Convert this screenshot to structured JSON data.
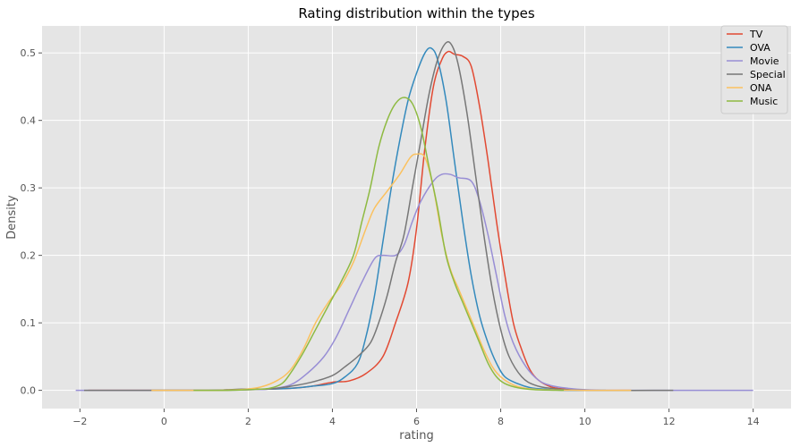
{
  "chart_data": {
    "type": "line",
    "title": "Rating distribution within the types",
    "xlabel": "rating",
    "ylabel": "Density",
    "xlim": [
      -2.9,
      14.9
    ],
    "ylim": [
      -0.027,
      0.54
    ],
    "xticks": [
      -2,
      0,
      2,
      4,
      6,
      8,
      10,
      12,
      14
    ],
    "yticks": [
      0.0,
      0.1,
      0.2,
      0.3,
      0.4,
      0.5
    ],
    "xtick_labels": [
      "−2",
      "0",
      "2",
      "4",
      "6",
      "8",
      "10",
      "12",
      "14"
    ],
    "ytick_labels": [
      "0.0",
      "0.1",
      "0.2",
      "0.3",
      "0.4",
      "0.5"
    ],
    "grid": true,
    "legend_position": "top-right",
    "series": [
      {
        "name": "TV",
        "color": "#E24A33",
        "points": [
          [
            -1.8,
            0
          ],
          [
            1.0,
            0
          ],
          [
            2.0,
            0.001
          ],
          [
            3.0,
            0.003
          ],
          [
            3.5,
            0.006
          ],
          [
            4.0,
            0.012
          ],
          [
            4.4,
            0.014
          ],
          [
            4.8,
            0.025
          ],
          [
            5.2,
            0.05
          ],
          [
            5.5,
            0.1
          ],
          [
            5.8,
            0.16
          ],
          [
            6.0,
            0.24
          ],
          [
            6.2,
            0.36
          ],
          [
            6.4,
            0.45
          ],
          [
            6.6,
            0.49
          ],
          [
            6.75,
            0.502
          ],
          [
            6.9,
            0.498
          ],
          [
            7.1,
            0.495
          ],
          [
            7.3,
            0.48
          ],
          [
            7.5,
            0.42
          ],
          [
            7.7,
            0.34
          ],
          [
            7.9,
            0.25
          ],
          [
            8.1,
            0.17
          ],
          [
            8.3,
            0.1
          ],
          [
            8.5,
            0.06
          ],
          [
            8.7,
            0.03
          ],
          [
            8.9,
            0.015
          ],
          [
            9.2,
            0.005
          ],
          [
            9.5,
            0.002
          ],
          [
            10,
            0
          ],
          [
            11.1,
            0
          ]
        ]
      },
      {
        "name": "OVA",
        "color": "#348ABD",
        "points": [
          [
            -0.3,
            0
          ],
          [
            1.0,
            0
          ],
          [
            2.0,
            0.001
          ],
          [
            3.0,
            0.003
          ],
          [
            3.5,
            0.006
          ],
          [
            4.0,
            0.01
          ],
          [
            4.3,
            0.02
          ],
          [
            4.6,
            0.04
          ],
          [
            4.8,
            0.08
          ],
          [
            5.0,
            0.14
          ],
          [
            5.2,
            0.22
          ],
          [
            5.4,
            0.3
          ],
          [
            5.6,
            0.37
          ],
          [
            5.8,
            0.43
          ],
          [
            6.0,
            0.47
          ],
          [
            6.2,
            0.5
          ],
          [
            6.35,
            0.507
          ],
          [
            6.5,
            0.49
          ],
          [
            6.7,
            0.43
          ],
          [
            6.9,
            0.34
          ],
          [
            7.1,
            0.25
          ],
          [
            7.3,
            0.17
          ],
          [
            7.5,
            0.11
          ],
          [
            7.7,
            0.07
          ],
          [
            7.9,
            0.04
          ],
          [
            8.1,
            0.02
          ],
          [
            8.4,
            0.01
          ],
          [
            8.7,
            0.004
          ],
          [
            9.0,
            0.002
          ],
          [
            9.5,
            0
          ],
          [
            10.5,
            0
          ]
        ]
      },
      {
        "name": "Movie",
        "color": "#988ED5",
        "points": [
          [
            -2.1,
            0
          ],
          [
            1.0,
            0
          ],
          [
            2.0,
            0.001
          ],
          [
            2.5,
            0.002
          ],
          [
            3.0,
            0.008
          ],
          [
            3.4,
            0.025
          ],
          [
            3.8,
            0.05
          ],
          [
            4.1,
            0.08
          ],
          [
            4.4,
            0.12
          ],
          [
            4.7,
            0.16
          ],
          [
            5.0,
            0.195
          ],
          [
            5.2,
            0.2
          ],
          [
            5.5,
            0.2
          ],
          [
            5.7,
            0.215
          ],
          [
            5.9,
            0.25
          ],
          [
            6.1,
            0.28
          ],
          [
            6.4,
            0.31
          ],
          [
            6.6,
            0.32
          ],
          [
            6.8,
            0.32
          ],
          [
            7.0,
            0.315
          ],
          [
            7.3,
            0.31
          ],
          [
            7.5,
            0.28
          ],
          [
            7.7,
            0.23
          ],
          [
            7.9,
            0.17
          ],
          [
            8.1,
            0.11
          ],
          [
            8.3,
            0.07
          ],
          [
            8.6,
            0.035
          ],
          [
            8.9,
            0.015
          ],
          [
            9.2,
            0.007
          ],
          [
            9.6,
            0.003
          ],
          [
            10,
            0.001
          ],
          [
            11,
            0
          ],
          [
            14.0,
            0
          ]
        ]
      },
      {
        "name": "Special",
        "color": "#777777",
        "points": [
          [
            -1.9,
            0
          ],
          [
            1.0,
            0
          ],
          [
            1.5,
            0.001
          ],
          [
            2.0,
            0.002
          ],
          [
            2.5,
            0.002
          ],
          [
            3.0,
            0.006
          ],
          [
            3.5,
            0.012
          ],
          [
            4.0,
            0.022
          ],
          [
            4.3,
            0.035
          ],
          [
            4.6,
            0.05
          ],
          [
            4.9,
            0.07
          ],
          [
            5.1,
            0.1
          ],
          [
            5.3,
            0.14
          ],
          [
            5.5,
            0.19
          ],
          [
            5.7,
            0.23
          ],
          [
            5.9,
            0.3
          ],
          [
            6.1,
            0.37
          ],
          [
            6.3,
            0.44
          ],
          [
            6.5,
            0.49
          ],
          [
            6.7,
            0.515
          ],
          [
            6.85,
            0.51
          ],
          [
            7.0,
            0.48
          ],
          [
            7.2,
            0.41
          ],
          [
            7.4,
            0.32
          ],
          [
            7.6,
            0.23
          ],
          [
            7.8,
            0.15
          ],
          [
            8.0,
            0.09
          ],
          [
            8.2,
            0.05
          ],
          [
            8.5,
            0.02
          ],
          [
            8.8,
            0.008
          ],
          [
            9.2,
            0.003
          ],
          [
            10,
            0
          ],
          [
            12.1,
            0
          ]
        ]
      },
      {
        "name": "ONA",
        "color": "#FBC15E",
        "points": [
          [
            -0.3,
            0
          ],
          [
            1.0,
            0
          ],
          [
            1.8,
            0.001
          ],
          [
            2.3,
            0.005
          ],
          [
            2.7,
            0.015
          ],
          [
            3.0,
            0.03
          ],
          [
            3.3,
            0.06
          ],
          [
            3.6,
            0.1
          ],
          [
            3.9,
            0.13
          ],
          [
            4.2,
            0.155
          ],
          [
            4.5,
            0.19
          ],
          [
            4.8,
            0.24
          ],
          [
            5.0,
            0.27
          ],
          [
            5.3,
            0.295
          ],
          [
            5.6,
            0.32
          ],
          [
            5.85,
            0.345
          ],
          [
            6.0,
            0.35
          ],
          [
            6.2,
            0.345
          ],
          [
            6.4,
            0.3
          ],
          [
            6.6,
            0.23
          ],
          [
            6.8,
            0.18
          ],
          [
            7.0,
            0.15
          ],
          [
            7.2,
            0.12
          ],
          [
            7.4,
            0.09
          ],
          [
            7.6,
            0.06
          ],
          [
            7.8,
            0.035
          ],
          [
            8.0,
            0.02
          ],
          [
            8.3,
            0.008
          ],
          [
            8.6,
            0.003
          ],
          [
            9.0,
            0.001
          ],
          [
            10,
            0
          ],
          [
            11.1,
            0
          ]
        ]
      },
      {
        "name": "Music",
        "color": "#8EBA42",
        "points": [
          [
            0.7,
            0
          ],
          [
            1.5,
            0
          ],
          [
            2.0,
            0.001
          ],
          [
            2.5,
            0.003
          ],
          [
            2.8,
            0.01
          ],
          [
            3.0,
            0.025
          ],
          [
            3.3,
            0.055
          ],
          [
            3.6,
            0.09
          ],
          [
            3.9,
            0.125
          ],
          [
            4.2,
            0.16
          ],
          [
            4.5,
            0.2
          ],
          [
            4.7,
            0.25
          ],
          [
            4.9,
            0.3
          ],
          [
            5.1,
            0.36
          ],
          [
            5.3,
            0.4
          ],
          [
            5.5,
            0.425
          ],
          [
            5.7,
            0.434
          ],
          [
            5.9,
            0.425
          ],
          [
            6.1,
            0.39
          ],
          [
            6.3,
            0.33
          ],
          [
            6.5,
            0.27
          ],
          [
            6.7,
            0.2
          ],
          [
            6.9,
            0.16
          ],
          [
            7.1,
            0.13
          ],
          [
            7.3,
            0.1
          ],
          [
            7.5,
            0.07
          ],
          [
            7.7,
            0.04
          ],
          [
            7.9,
            0.02
          ],
          [
            8.1,
            0.01
          ],
          [
            8.4,
            0.004
          ],
          [
            8.8,
            0.001
          ],
          [
            9.5,
            0
          ]
        ]
      }
    ]
  }
}
